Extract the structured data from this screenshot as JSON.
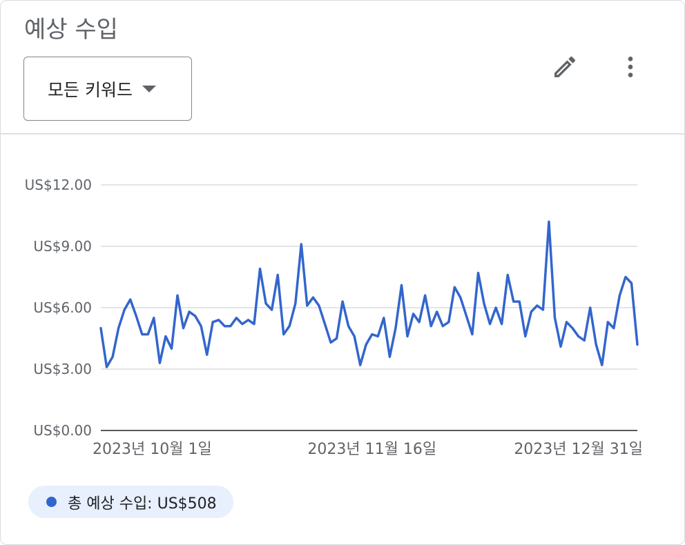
{
  "card": {
    "title": "예상 수입",
    "filter": {
      "selected": "모든 키워드"
    },
    "actions": {
      "edit_icon": "pencil-icon",
      "more_icon": "more-vert-icon"
    }
  },
  "colors": {
    "series": "#3366cc",
    "legend_bg": "#e8f0fe",
    "grid": "#dadce0",
    "axis": "#202124"
  },
  "legend": {
    "label": "총 예상 수입: US$508"
  },
  "chart_data": {
    "type": "line",
    "y_ticks": [
      "US$0.00",
      "US$3.00",
      "US$6.00",
      "US$9.00",
      "US$12.00"
    ],
    "ylim": [
      0,
      12
    ],
    "x_ticks": [
      "2023년 10월 1일",
      "2023년 11월 16일",
      "2023년 12월 31일"
    ],
    "x_start": "2023-10-01",
    "x_end": "2023-12-31",
    "grid": true,
    "series": [
      {
        "values": [
          5.0,
          3.1,
          3.6,
          5.0,
          5.9,
          6.4,
          5.6,
          4.7,
          4.7,
          5.5,
          3.3,
          4.6,
          4.0,
          6.6,
          5.0,
          5.8,
          5.6,
          5.1,
          3.7,
          5.3,
          5.4,
          5.1,
          5.1,
          5.5,
          5.2,
          5.4,
          5.2,
          7.9,
          6.2,
          5.9,
          7.6,
          4.7,
          5.1,
          6.2,
          9.1,
          6.1,
          6.5,
          6.1,
          5.2,
          4.3,
          4.5,
          6.3,
          5.1,
          4.6,
          3.2,
          4.2,
          4.7,
          4.6,
          5.5,
          3.6,
          5.0,
          7.1,
          4.6,
          5.7,
          5.3,
          6.6,
          5.1,
          5.8,
          5.1,
          5.3,
          7.0,
          6.5,
          5.6,
          4.7,
          7.7,
          6.2,
          5.2,
          6.0,
          5.2,
          7.6,
          6.3,
          6.3,
          4.6,
          5.8,
          6.1,
          5.9,
          10.2,
          5.5,
          4.1,
          5.3,
          5.0,
          4.6,
          4.4,
          6.0,
          4.2,
          3.2,
          5.3,
          5.0,
          6.6,
          7.5,
          7.2,
          4.2
        ]
      }
    ]
  }
}
